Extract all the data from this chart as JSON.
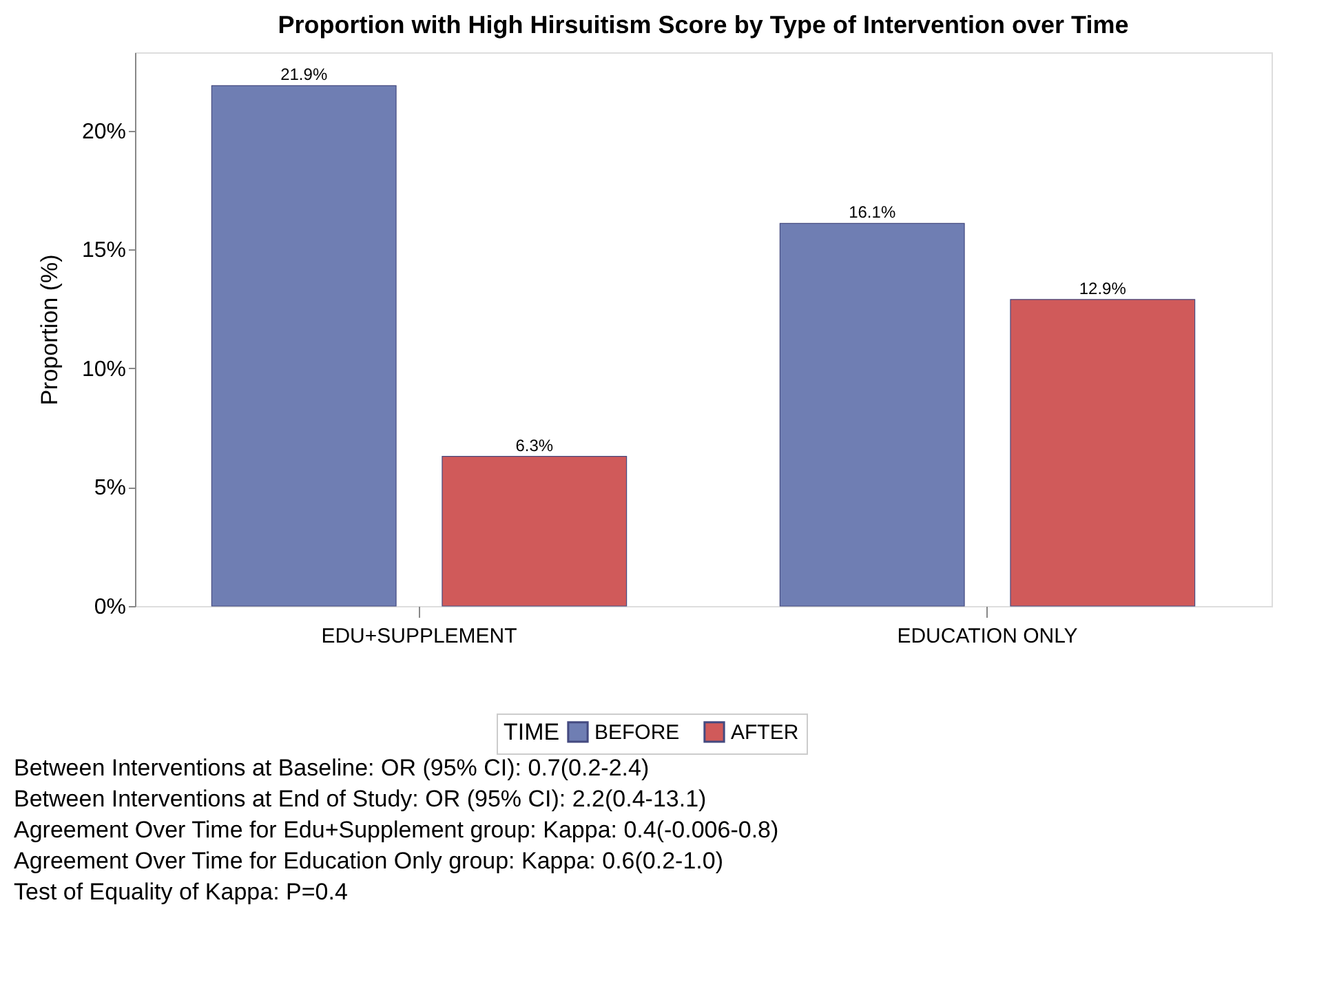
{
  "chart_data": {
    "type": "bar",
    "title": "Proportion with High Hirsuitism Score by Type of Intervention over Time",
    "ylabel": "Proportion (%)",
    "legend_title": "TIME",
    "legend": "bottom",
    "grid": false,
    "categories": [
      "EDU+SUPPLEMENT",
      "EDUCATION ONLY"
    ],
    "series": [
      {
        "name": "BEFORE",
        "color": "#6f7eb3",
        "values": [
          21.9,
          16.1
        ],
        "value_labels": [
          "21.9%",
          "16.1%"
        ]
      },
      {
        "name": "AFTER",
        "color": "#d05a5a",
        "values": [
          6.3,
          12.9
        ],
        "value_labels": [
          "6.3%",
          "12.9%"
        ]
      }
    ],
    "ylim": [
      0,
      23.3
    ],
    "yticks": [
      {
        "value": 0,
        "label": "0%"
      },
      {
        "value": 5,
        "label": "5%"
      },
      {
        "value": 10,
        "label": "10%"
      },
      {
        "value": 15,
        "label": "15%"
      },
      {
        "value": 20,
        "label": "20%"
      }
    ],
    "annotations": [
      "Between Interventions at Baseline: OR (95% CI): 0.7(0.2-2.4)",
      "Between Interventions at End of Study: OR (95% CI): 2.2(0.4-13.1)",
      "Agreement Over Time for Edu+Supplement group: Kappa: 0.4(-0.006-0.8)",
      "Agreement Over Time for Education Only group: Kappa: 0.6(0.2-1.0)",
      "Test of Equality of Kappa: P=0.4"
    ]
  }
}
